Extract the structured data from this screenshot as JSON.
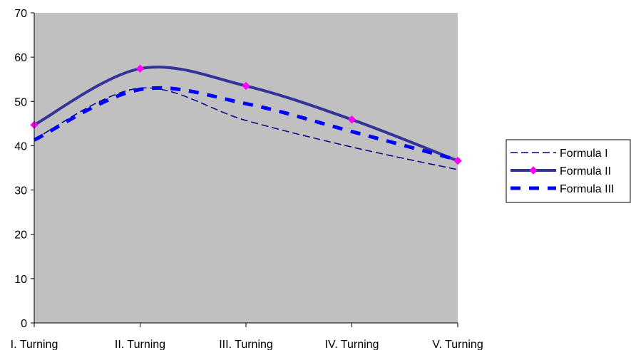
{
  "chart_data": {
    "type": "line",
    "title": "",
    "xlabel": "",
    "ylabel": "",
    "categories": [
      "I. Turning",
      "II. Turning",
      "III. Turning",
      "IV. Turning",
      "V. Turning"
    ],
    "ylim": [
      0,
      70
    ],
    "yticks": [
      0,
      10,
      20,
      30,
      40,
      50,
      60,
      70
    ],
    "grid": false,
    "plot_background": "#c0c0c0",
    "legend_position": "right",
    "series": [
      {
        "name": "Formula I",
        "values": [
          41.5,
          53.0,
          45.7,
          39.7,
          34.6
        ],
        "color": "#000080",
        "style": "thin-dashed"
      },
      {
        "name": "Formula II",
        "values": [
          44.7,
          57.4,
          53.5,
          45.9,
          36.6
        ],
        "color": "#333399",
        "marker_color": "#ff00ff",
        "style": "thick-solid-diamond"
      },
      {
        "name": "Formula III",
        "values": [
          41.3,
          52.7,
          49.5,
          43.2,
          36.8
        ],
        "color": "#0000ff",
        "style": "thick-dashed"
      }
    ]
  }
}
